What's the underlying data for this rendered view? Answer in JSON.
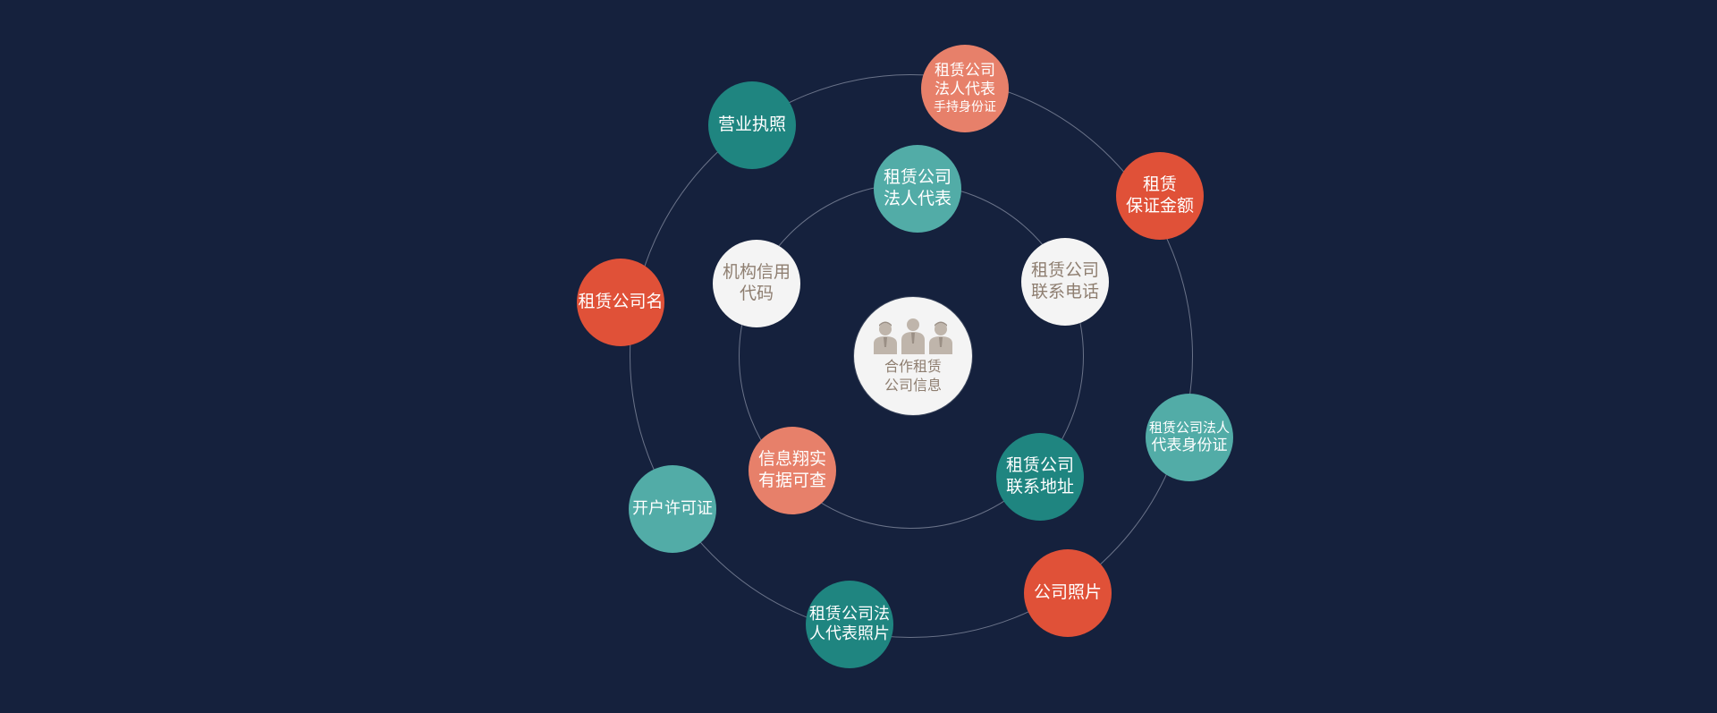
{
  "center": {
    "line1": "合作租赁",
    "line2": "公司信息",
    "icon": "people-group-icon"
  },
  "colors": {
    "background": "#15213d",
    "teal_dark": "#1f8580",
    "teal_light": "#52aca7",
    "red": "#e05138",
    "salmon": "#e7806a",
    "white": "#f4f4f4",
    "white_text": "#8e7e70"
  },
  "inner_nodes": [
    {
      "lines": [
        "租赁公司",
        "法人代表"
      ],
      "color": "teal_light"
    },
    {
      "lines": [
        "租赁公司",
        "联系电话"
      ],
      "color": "white"
    },
    {
      "lines": [
        "租赁公司",
        "联系地址"
      ],
      "color": "teal_dark"
    },
    {
      "lines": [
        "信息翔实",
        "有据可查"
      ],
      "color": "salmon"
    },
    {
      "lines": [
        "机构信用",
        "代码"
      ],
      "color": "white"
    }
  ],
  "outer_nodes": [
    {
      "lines": [
        "租赁公司",
        "法人代表",
        "手持身份证"
      ],
      "color": "salmon"
    },
    {
      "lines": [
        "租赁",
        "保证金额"
      ],
      "color": "red"
    },
    {
      "lines": [
        "租赁公司法人",
        "代表身份证"
      ],
      "color": "teal_light"
    },
    {
      "lines": [
        "公司照片"
      ],
      "color": "red"
    },
    {
      "lines": [
        "租赁公司法",
        "人代表照片"
      ],
      "color": "teal_dark"
    },
    {
      "lines": [
        "开户许可证"
      ],
      "color": "teal_light"
    },
    {
      "lines": [
        "租赁公司名"
      ],
      "color": "red"
    },
    {
      "lines": [
        "营业执照"
      ],
      "color": "teal_dark"
    }
  ]
}
